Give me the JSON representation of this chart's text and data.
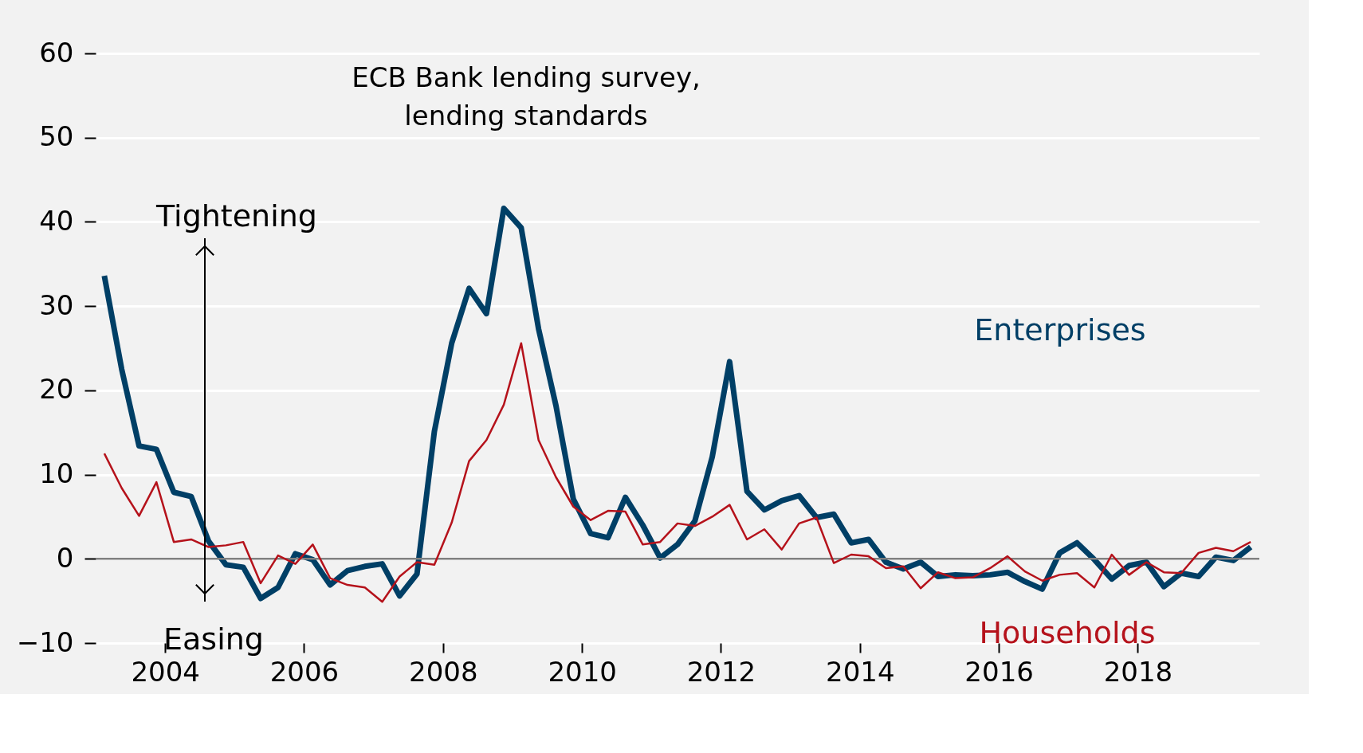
{
  "chart_data": {
    "type": "line",
    "title": "ECB Bank lending survey,\nlending standards",
    "x": [
      2003.125,
      2003.375,
      2003.625,
      2003.875,
      2004.125,
      2004.375,
      2004.625,
      2004.875,
      2005.125,
      2005.375,
      2005.625,
      2005.875,
      2006.125,
      2006.375,
      2006.625,
      2006.875,
      2007.125,
      2007.375,
      2007.625,
      2007.875,
      2008.125,
      2008.375,
      2008.625,
      2008.875,
      2009.125,
      2009.375,
      2009.625,
      2009.875,
      2010.125,
      2010.375,
      2010.625,
      2010.875,
      2011.125,
      2011.375,
      2011.625,
      2011.875,
      2012.125,
      2012.375,
      2012.625,
      2012.875,
      2013.125,
      2013.375,
      2013.625,
      2013.875,
      2014.125,
      2014.375,
      2014.625,
      2014.875,
      2015.125,
      2015.375,
      2015.625,
      2015.875,
      2016.125,
      2016.375,
      2016.625,
      2016.875,
      2017.125,
      2017.375,
      2017.625,
      2017.875,
      2018.125,
      2018.375,
      2018.625,
      2018.875,
      2019.125,
      2019.375,
      2019.625
    ],
    "series": [
      {
        "name": "Enterprises",
        "color": "#003f66",
        "values": [
          33.6,
          22.5,
          13.4,
          13.0,
          7.9,
          7.4,
          2.1,
          -0.7,
          -1.0,
          -4.7,
          -3.4,
          0.6,
          -0.1,
          -3.1,
          -1.4,
          -0.9,
          -0.6,
          -4.4,
          -1.8,
          15.1,
          25.6,
          32.1,
          29.1,
          41.6,
          39.3,
          27.3,
          18.2,
          7.1,
          3.0,
          2.5,
          7.3,
          4.0,
          0.1,
          1.7,
          4.5,
          12.1,
          23.4,
          8.0,
          5.8,
          6.9,
          7.5,
          4.9,
          5.3,
          1.9,
          2.3,
          -0.4,
          -1.2,
          -0.4,
          -2.1,
          -1.9,
          -2.0,
          -1.9,
          -1.6,
          -2.7,
          -3.6,
          0.7,
          1.9,
          -0.1,
          -2.4,
          -0.8,
          -0.4,
          -3.3,
          -1.7,
          -2.1,
          0.2,
          -0.2,
          1.4
        ]
      },
      {
        "name": "Households",
        "color": "#b5121b",
        "values": [
          12.5,
          8.4,
          5.1,
          9.1,
          2.0,
          2.3,
          1.4,
          1.6,
          2.0,
          -2.9,
          0.4,
          -0.6,
          1.7,
          -2.3,
          -3.1,
          -3.4,
          -5.1,
          -2.1,
          -0.4,
          -0.7,
          4.3,
          11.6,
          14.1,
          18.3,
          25.6,
          14.1,
          9.7,
          6.2,
          4.6,
          5.7,
          5.6,
          1.7,
          2.0,
          4.2,
          3.9,
          5.0,
          6.4,
          2.3,
          3.5,
          1.1,
          4.2,
          4.9,
          -0.5,
          0.5,
          0.3,
          -1.1,
          -0.9,
          -3.5,
          -1.6,
          -2.3,
          -2.2,
          -1.1,
          0.3,
          -1.5,
          -2.6,
          -1.9,
          -1.7,
          -3.4,
          0.5,
          -1.9,
          -0.4,
          -1.6,
          -1.7,
          0.7,
          1.3,
          0.9,
          2.0
        ]
      }
    ],
    "xlim": [
      2003.0,
      2019.75
    ],
    "xticks": [
      2004,
      2006,
      2008,
      2010,
      2012,
      2014,
      2016,
      2018
    ],
    "ylim": [
      -10,
      60
    ],
    "yticks": [
      -10,
      0,
      10,
      20,
      30,
      40,
      50,
      60
    ],
    "grid": "y",
    "ref_lines": [
      {
        "axis": "y",
        "value": 0,
        "color": "#808080"
      }
    ],
    "annotations": [
      "Tightening",
      "Easing"
    ],
    "line_style": "solid",
    "marker": "none"
  }
}
